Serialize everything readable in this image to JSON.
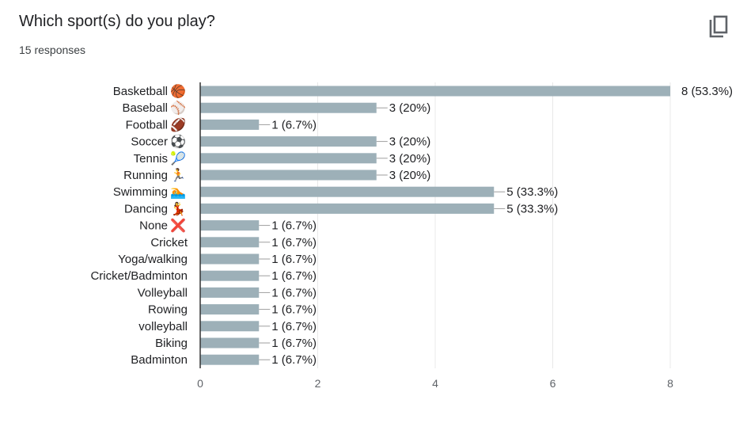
{
  "card": {
    "title": "Which sport(s) do you play?",
    "responses": "15 responses",
    "copy_icon": "copy-icon"
  },
  "colors": {
    "bar": "#9db0b8",
    "grid": "#e8e8e8",
    "axis": "#333333",
    "connector": "#9e9e9e"
  },
  "chart_data": {
    "type": "bar",
    "orientation": "horizontal",
    "categories": [
      {
        "label": "Basketball",
        "icon": "🏀"
      },
      {
        "label": "Baseball",
        "icon": "⚾"
      },
      {
        "label": "Football",
        "icon": "🏈"
      },
      {
        "label": "Soccer",
        "icon": "⚽"
      },
      {
        "label": "Tennis",
        "icon": "🎾"
      },
      {
        "label": "Running",
        "icon": "🏃"
      },
      {
        "label": "Swimming",
        "icon": "🏊"
      },
      {
        "label": "Dancing",
        "icon": "💃"
      },
      {
        "label": "None",
        "icon": "❌"
      },
      {
        "label": "Cricket",
        "icon": ""
      },
      {
        "label": "Yoga/walking",
        "icon": ""
      },
      {
        "label": "Cricket/Badminton",
        "icon": ""
      },
      {
        "label": "Volleyball",
        "icon": ""
      },
      {
        "label": "Rowing",
        "icon": ""
      },
      {
        "label": "volleyball",
        "icon": ""
      },
      {
        "label": "Biking",
        "icon": ""
      },
      {
        "label": "Badminton",
        "icon": ""
      }
    ],
    "values": [
      8,
      3,
      1,
      3,
      3,
      3,
      5,
      5,
      1,
      1,
      1,
      1,
      1,
      1,
      1,
      1,
      1
    ],
    "data_labels": [
      "8 (53.3%)",
      "3 (20%)",
      "1 (6.7%)",
      "3 (20%)",
      "3 (20%)",
      "3 (20%)",
      "5 (33.3%)",
      "5 (33.3%)",
      "1 (6.7%)",
      "1 (6.7%)",
      "1 (6.7%)",
      "1 (6.7%)",
      "1 (6.7%)",
      "1 (6.7%)",
      "1 (6.7%)",
      "1 (6.7%)",
      "1 (6.7%)"
    ],
    "xlim": [
      0,
      8
    ],
    "xticks": [
      0,
      2,
      4,
      6,
      8
    ],
    "grid": true
  }
}
